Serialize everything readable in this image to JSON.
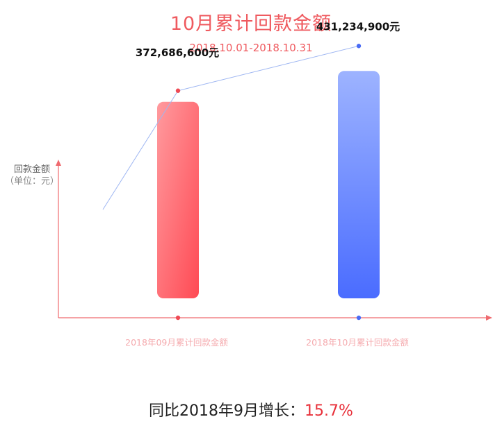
{
  "chart_data": {
    "type": "bar",
    "title": "10月累计回款金额",
    "subtitle": "2018.10.01-2018.10.31",
    "ylabel": "回款金额",
    "yunit": "（单位：元）",
    "categories": [
      "2018年09月累计回款金额",
      "2018年10月累计回款金额"
    ],
    "values": [
      372686600,
      431234900
    ],
    "value_labels": [
      "372,686,600元",
      "431,234,900元"
    ],
    "ylim": [
      0,
      500000000
    ],
    "grid": false,
    "legend": "none",
    "colors": {
      "bar1_top": "#ff9a9e",
      "bar1_bottom": "#ff4a54",
      "bar2_top": "#9db3ff",
      "bar2_bottom": "#4a6cff",
      "axis": "#ef6a6f",
      "point1": "#ef4a55",
      "point2": "#4a6cf5",
      "trend": "#9eb6f2",
      "category_text": "#f5aaae"
    }
  },
  "summary": {
    "prefix": "同比2018年9月增长：",
    "value": "15.7%"
  }
}
